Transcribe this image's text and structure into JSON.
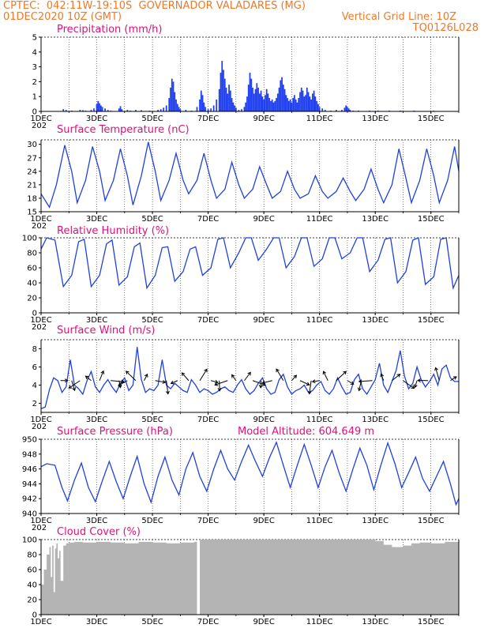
{
  "header": {
    "line1": "CPTEC:  042:11W-19:10S  GOVERNADOR VALADARES (MG)",
    "line2_left": "01DEC2020 10Z (GMT)",
    "line2_right": "Vertical Grid Line: 10Z",
    "line3_right": "TQ0126L028"
  },
  "colors": {
    "header": "#f07828",
    "titles": "#e0107a",
    "series": "#2040e0",
    "bars": "#2040f0",
    "cloud": "#b4b4b4"
  },
  "x_axis": {
    "day_labels": [
      "1DEC",
      "3DEC",
      "5DEC",
      "7DEC",
      "9DEC",
      "11DEC",
      "13DEC",
      "15DEC"
    ],
    "year_fragment": "202"
  },
  "chart_data": [
    {
      "type": "bar",
      "title": "Precipitation (mm/h)",
      "ylim": [
        0,
        5
      ],
      "yticks": [
        0,
        1,
        2,
        3,
        4,
        5
      ],
      "x_days": [
        1,
        16
      ],
      "x": [
        1.8,
        1.9,
        2.1,
        2.4,
        2.5,
        2.6,
        2.8,
        2.9,
        3.0,
        3.05,
        3.1,
        3.15,
        3.2,
        3.3,
        3.4,
        3.5,
        3.8,
        3.85,
        3.9,
        4.1,
        4.2,
        4.4,
        4.6,
        4.9,
        5.2,
        5.3,
        5.4,
        5.5,
        5.6,
        5.65,
        5.7,
        5.75,
        5.8,
        5.85,
        5.9,
        5.95,
        6.0,
        6.2,
        6.4,
        6.6,
        6.7,
        6.75,
        6.8,
        6.85,
        6.9,
        7.0,
        7.1,
        7.2,
        7.3,
        7.4,
        7.45,
        7.5,
        7.55,
        7.6,
        7.65,
        7.7,
        7.75,
        7.8,
        7.85,
        7.9,
        7.95,
        8.0,
        8.1,
        8.2,
        8.3,
        8.35,
        8.4,
        8.45,
        8.5,
        8.55,
        8.6,
        8.65,
        8.7,
        8.75,
        8.8,
        8.85,
        8.9,
        8.95,
        9.0,
        9.05,
        9.1,
        9.15,
        9.2,
        9.25,
        9.3,
        9.35,
        9.4,
        9.45,
        9.5,
        9.55,
        9.6,
        9.65,
        9.7,
        9.75,
        9.8,
        9.85,
        9.9,
        9.95,
        10.0,
        10.05,
        10.1,
        10.15,
        10.2,
        10.25,
        10.3,
        10.35,
        10.4,
        10.45,
        10.5,
        10.55,
        10.6,
        10.65,
        10.7,
        10.75,
        10.8,
        10.85,
        10.9,
        10.95,
        11.0,
        11.1,
        11.2,
        11.4,
        11.6,
        11.8,
        11.9,
        11.95,
        12.0,
        12.05,
        12.1,
        12.2,
        12.4,
        12.8,
        13.1,
        13.5,
        13.9,
        14.4,
        15.1
      ],
      "values": [
        0.15,
        0.1,
        0.05,
        0.1,
        0.08,
        0.05,
        0.1,
        0.2,
        0.5,
        0.7,
        0.55,
        0.4,
        0.3,
        0.2,
        0.1,
        0.05,
        0.2,
        0.35,
        0.15,
        0.1,
        0.05,
        0.1,
        0.08,
        0.05,
        0.1,
        0.15,
        0.25,
        0.4,
        0.9,
        1.6,
        2.2,
        2.0,
        1.3,
        0.8,
        0.5,
        0.3,
        0.15,
        0.1,
        0.05,
        0.3,
        0.8,
        1.4,
        1.1,
        0.6,
        0.3,
        0.15,
        0.2,
        0.4,
        0.8,
        1.5,
        2.6,
        3.4,
        2.8,
        2.2,
        1.6,
        1.2,
        1.8,
        1.4,
        0.9,
        0.6,
        0.4,
        0.25,
        0.1,
        0.15,
        0.3,
        0.6,
        1.0,
        1.8,
        2.6,
        2.2,
        1.6,
        1.2,
        1.5,
        1.9,
        1.6,
        1.2,
        1.4,
        1.0,
        0.8,
        1.1,
        1.5,
        1.2,
        0.9,
        0.7,
        0.8,
        0.6,
        0.7,
        0.9,
        1.2,
        1.6,
        2.1,
        2.3,
        1.8,
        1.5,
        1.1,
        0.9,
        0.7,
        0.8,
        0.6,
        0.9,
        1.1,
        0.8,
        0.6,
        0.9,
        1.3,
        1.6,
        1.4,
        1.0,
        1.1,
        1.6,
        1.3,
        1.0,
        0.8,
        1.2,
        1.4,
        1.0,
        0.7,
        0.5,
        0.3,
        0.2,
        0.1,
        0.05,
        0.1,
        0.1,
        0.25,
        0.4,
        0.3,
        0.2,
        0.1,
        0.05,
        0.05,
        0.05,
        0.05,
        0.05,
        0.05,
        0.05,
        0.05
      ]
    },
    {
      "type": "line",
      "title": "Surface Temperature (nC)",
      "ylim": [
        15,
        31
      ],
      "yticks": [
        15,
        18,
        21,
        24,
        27,
        30
      ],
      "x_days": [
        1,
        16
      ],
      "series": [
        {
          "x": [
            1.0,
            1.3,
            1.55,
            1.85,
            2.1,
            2.3,
            2.6,
            2.85,
            3.1,
            3.3,
            3.6,
            3.85,
            4.1,
            4.3,
            4.6,
            4.85,
            5.1,
            5.3,
            5.6,
            5.85,
            6.1,
            6.3,
            6.6,
            6.85,
            7.1,
            7.3,
            7.6,
            7.85,
            8.1,
            8.3,
            8.6,
            8.85,
            9.1,
            9.3,
            9.6,
            9.85,
            10.1,
            10.3,
            10.6,
            10.85,
            11.1,
            11.3,
            11.6,
            11.85,
            12.1,
            12.3,
            12.6,
            12.85,
            13.1,
            13.3,
            13.6,
            13.85,
            14.1,
            14.3,
            14.6,
            14.85,
            15.1,
            15.3,
            15.6,
            15.85,
            16.0
          ],
          "y": [
            19,
            16,
            21,
            29.8,
            24,
            17,
            22,
            29.5,
            24,
            17.5,
            22,
            29,
            23,
            16.5,
            23,
            30.5,
            24,
            17.5,
            22,
            28,
            22,
            19,
            22,
            28,
            22,
            18,
            20,
            26,
            21,
            18,
            20,
            25,
            21,
            18,
            19.5,
            24,
            20,
            18,
            19,
            23,
            19.5,
            18,
            19.5,
            22.5,
            19.5,
            17.5,
            20,
            24.5,
            20,
            17,
            21,
            29,
            22.5,
            17,
            22,
            29,
            23,
            17,
            22,
            29.5,
            24
          ]
        }
      ]
    },
    {
      "type": "line",
      "title": "Relative Humidity (%)",
      "ylim": [
        0,
        100
      ],
      "yticks": [
        0,
        20,
        40,
        60,
        80,
        100
      ],
      "x_days": [
        1,
        16
      ],
      "series": [
        {
          "x": [
            1.0,
            1.2,
            1.5,
            1.8,
            2.1,
            2.35,
            2.55,
            2.8,
            3.1,
            3.35,
            3.55,
            3.8,
            4.1,
            4.35,
            4.55,
            4.8,
            5.1,
            5.35,
            5.55,
            5.8,
            6.1,
            6.35,
            6.55,
            6.8,
            7.1,
            7.35,
            7.55,
            7.8,
            8.1,
            8.35,
            8.55,
            8.8,
            9.1,
            9.35,
            9.55,
            9.8,
            10.1,
            10.35,
            10.55,
            10.8,
            11.1,
            11.35,
            11.55,
            11.8,
            12.1,
            12.35,
            12.55,
            12.8,
            13.1,
            13.35,
            13.55,
            13.8,
            14.1,
            14.35,
            14.55,
            14.8,
            15.1,
            15.35,
            15.55,
            15.8,
            16.0
          ],
          "y": [
            85,
            100,
            97,
            35,
            50,
            95,
            98,
            35,
            50,
            92,
            97,
            37,
            48,
            88,
            93,
            33,
            50,
            87,
            88,
            42,
            55,
            85,
            88,
            50,
            60,
            98,
            100,
            60,
            80,
            100,
            100,
            70,
            85,
            100,
            100,
            60,
            75,
            100,
            100,
            62,
            72,
            100,
            100,
            72,
            80,
            100,
            100,
            55,
            70,
            98,
            100,
            40,
            55,
            97,
            100,
            38,
            48,
            98,
            100,
            33,
            50
          ]
        }
      ]
    },
    {
      "type": "line",
      "title": "Surface Wind (m/s)",
      "ylim": [
        1,
        9
      ],
      "yticks": [
        2,
        4,
        6,
        8
      ],
      "x_days": [
        1,
        16
      ],
      "series": [
        {
          "x": [
            1.0,
            1.15,
            1.3,
            1.45,
            1.6,
            1.75,
            1.9,
            2.05,
            2.2,
            2.35,
            2.5,
            2.65,
            2.8,
            2.95,
            3.1,
            3.25,
            3.4,
            3.55,
            3.7,
            3.85,
            4.0,
            4.15,
            4.3,
            4.45,
            4.6,
            4.75,
            4.9,
            5.05,
            5.2,
            5.35,
            5.5,
            5.65,
            5.8,
            5.95,
            6.1,
            6.25,
            6.4,
            6.55,
            6.7,
            6.85,
            7.0,
            7.15,
            7.3,
            7.45,
            7.6,
            7.75,
            7.9,
            8.05,
            8.2,
            8.35,
            8.5,
            8.65,
            8.8,
            8.95,
            9.1,
            9.25,
            9.4,
            9.55,
            9.7,
            9.85,
            10.0,
            10.15,
            10.3,
            10.45,
            10.6,
            10.75,
            10.9,
            11.05,
            11.2,
            11.35,
            11.5,
            11.65,
            11.8,
            11.95,
            12.1,
            12.25,
            12.4,
            12.55,
            12.7,
            12.85,
            13.0,
            13.15,
            13.3,
            13.45,
            13.6,
            13.75,
            13.9,
            14.05,
            14.2,
            14.35,
            14.5,
            14.65,
            14.8,
            14.95,
            15.1,
            15.25,
            15.4,
            15.55,
            15.7,
            15.85,
            16.0
          ],
          "y": [
            1.4,
            1.6,
            3.5,
            4.8,
            4.5,
            3.2,
            3.8,
            6.8,
            4.0,
            3.6,
            3.0,
            4.5,
            5.5,
            3.8,
            3.2,
            4.0,
            4.6,
            3.8,
            3.2,
            4.2,
            4.8,
            3.4,
            4.0,
            8.2,
            4.6,
            3.2,
            3.6,
            3.4,
            4.0,
            6.8,
            4.0,
            3.6,
            4.2,
            3.8,
            3.4,
            3.2,
            4.6,
            4.0,
            3.2,
            3.6,
            3.4,
            3.0,
            3.2,
            3.6,
            3.8,
            3.4,
            3.2,
            4.0,
            4.6,
            3.6,
            3.0,
            3.4,
            4.2,
            4.8,
            3.6,
            3.0,
            3.2,
            4.6,
            5.2,
            3.8,
            3.0,
            3.4,
            3.6,
            4.0,
            3.2,
            3.4,
            4.0,
            4.4,
            3.4,
            3.0,
            3.6,
            4.8,
            3.8,
            3.0,
            3.2,
            4.6,
            5.2,
            3.6,
            3.0,
            3.8,
            4.6,
            6.4,
            4.0,
            3.2,
            4.4,
            5.6,
            7.8,
            5.0,
            3.6,
            4.2,
            6.0,
            4.6,
            3.8,
            4.4,
            5.2,
            4.0,
            5.8,
            6.2,
            4.8,
            4.4,
            4.4
          ]
        }
      ],
      "arrows_x": [
        1.7,
        2.1,
        2.4,
        2.8,
        3.1,
        3.5,
        3.8,
        4.1,
        4.4,
        4.7,
        5.1,
        5.5,
        5.9,
        6.3,
        6.7,
        7.1,
        7.4,
        7.7,
        8.0,
        8.3,
        8.6,
        8.9,
        9.3,
        9.7,
        10.0,
        10.3,
        10.7,
        11.0,
        11.3,
        11.6,
        12.0,
        12.5,
        12.9,
        13.3,
        13.6,
        14.0,
        14.5,
        14.9,
        15.3,
        15.7
      ]
    },
    {
      "type": "line",
      "title": "Surface Pressure (hPa)",
      "subtitle": "Model Altitude: 604.649  m",
      "ylim": [
        940,
        950
      ],
      "yticks": [
        940,
        942,
        944,
        946,
        948,
        950
      ],
      "x_days": [
        1,
        16
      ],
      "series": [
        {
          "x": [
            1.0,
            1.2,
            1.5,
            1.75,
            1.95,
            2.2,
            2.45,
            2.7,
            2.95,
            3.2,
            3.45,
            3.7,
            3.95,
            4.2,
            4.45,
            4.7,
            4.95,
            5.2,
            5.45,
            5.7,
            5.95,
            6.2,
            6.45,
            6.7,
            6.95,
            7.2,
            7.45,
            7.7,
            7.95,
            8.2,
            8.45,
            8.7,
            8.95,
            9.2,
            9.45,
            9.7,
            9.95,
            10.2,
            10.45,
            10.7,
            10.95,
            11.2,
            11.45,
            11.7,
            11.95,
            12.2,
            12.45,
            12.7,
            12.95,
            13.2,
            13.45,
            13.7,
            13.95,
            14.2,
            14.45,
            14.7,
            14.95,
            15.2,
            15.45,
            15.7,
            15.9,
            16.0
          ],
          "y": [
            946.3,
            946.7,
            946.5,
            943.5,
            941.7,
            944.5,
            946.8,
            943.5,
            941.6,
            944.4,
            947.0,
            944.3,
            942.0,
            945.0,
            947.7,
            944.0,
            941.5,
            945.0,
            947.6,
            944.5,
            942.5,
            946.0,
            948.2,
            945.0,
            943.0,
            946.0,
            948.5,
            946.0,
            944.5,
            947.0,
            949.2,
            947.0,
            945.0,
            947.5,
            949.6,
            946.5,
            943.5,
            946.5,
            949.3,
            946.5,
            943.5,
            946.3,
            948.5,
            945.5,
            943.0,
            946.0,
            948.8,
            946.5,
            943.2,
            946.5,
            949.5,
            946.8,
            943.5,
            945.5,
            947.6,
            944.7,
            943.0,
            945.0,
            947.0,
            944.0,
            941.2,
            942.0
          ]
        }
      ]
    },
    {
      "type": "bar",
      "title": "Cloud Cover (%)",
      "ylim": [
        0,
        100
      ],
      "yticks": [
        0,
        20,
        40,
        60,
        80,
        100
      ],
      "x_days": [
        1,
        16
      ],
      "x": [
        1.0,
        1.1,
        1.2,
        1.3,
        1.35,
        1.4,
        1.45,
        1.5,
        1.55,
        1.6,
        1.65,
        1.7,
        1.8,
        1.9,
        2.0,
        2.2,
        2.5,
        3.0,
        3.5,
        4.0,
        4.5,
        5.0,
        5.5,
        6.0,
        6.5,
        6.6,
        6.7,
        7.0,
        8.0,
        9.0,
        10.0,
        11.0,
        12.0,
        12.5,
        13.0,
        13.3,
        13.6,
        14.0,
        14.3,
        14.6,
        15.0,
        15.5,
        16.0
      ],
      "values": [
        40,
        60,
        80,
        90,
        50,
        92,
        30,
        88,
        95,
        75,
        85,
        45,
        92,
        95,
        96,
        97,
        96,
        97,
        96,
        95,
        97,
        96,
        95,
        96,
        97,
        0,
        100,
        100,
        100,
        100,
        100,
        100,
        100,
        100,
        98,
        93,
        90,
        92,
        95,
        96,
        95,
        97,
        98
      ]
    }
  ]
}
